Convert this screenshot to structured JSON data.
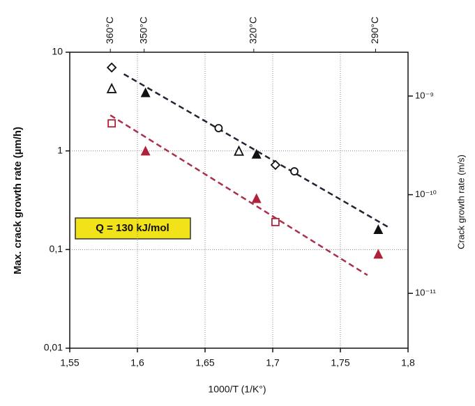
{
  "chart_data": {
    "type": "scatter",
    "y_label": "Max. crack growth rate (µm/h)",
    "y2_label": "Crack growth rate (m/s)",
    "x_label": "1000/T (1/K°)",
    "annotation": "Q = 130 kJ/mol",
    "log_y": true,
    "grid": true,
    "xlim": [
      1.55,
      1.8
    ],
    "xticks": [
      {
        "value": 1.55,
        "label": "1,55"
      },
      {
        "value": 1.6,
        "label": "1,6"
      },
      {
        "value": 1.65,
        "label": "1,65"
      },
      {
        "value": 1.7,
        "label": "1,7"
      },
      {
        "value": 1.75,
        "label": "1,75"
      },
      {
        "value": 1.8,
        "label": "1,8"
      }
    ],
    "ylim": [
      0.01,
      10
    ],
    "yticks": [
      {
        "value": 0.01,
        "label": "0,01"
      },
      {
        "value": 0.1,
        "label": "0,1"
      },
      1,
      10
    ],
    "y2lim": [
      2.78e-12,
      2.78e-09
    ],
    "y2ticks": [
      {
        "value": 1e-11,
        "label": "10⁻¹¹"
      },
      {
        "value": 1e-10,
        "label": "10⁻¹⁰"
      },
      {
        "value": 1e-09,
        "label": "10⁻⁹"
      }
    ],
    "top_ticks": [
      {
        "value": 1.58,
        "label": "360°C"
      },
      {
        "value": 1.605,
        "label": "350°C"
      },
      {
        "value": 1.686,
        "label": "320°C"
      },
      {
        "value": 1.776,
        "label": "290°C"
      }
    ],
    "series": [
      {
        "color": "#111111",
        "x": [
          1.581,
          1.581,
          1.606,
          1.66,
          1.675,
          1.688,
          1.702,
          1.716,
          1.778
        ],
        "values": [
          7,
          4.3,
          3.9,
          1.7,
          1.0,
          0.93,
          0.72,
          0.62,
          0.16
        ],
        "markers": [
          "diamond",
          "triangle",
          "triangle-filled",
          "circle",
          "triangle",
          "triangle-filled",
          "diamond",
          "circle",
          "triangle-filled"
        ]
      },
      {
        "color": "#b0203a",
        "x": [
          1.581,
          1.606,
          1.688,
          1.702,
          1.778
        ],
        "values": [
          1.9,
          1.0,
          0.33,
          0.19,
          0.09
        ],
        "markers": [
          "square",
          "triangle-filled",
          "triangle-filled",
          "square",
          "triangle-filled"
        ]
      }
    ],
    "fits": [
      {
        "color": "#222233",
        "x": [
          1.59,
          1.785
        ],
        "values": [
          6.0,
          0.17
        ]
      },
      {
        "color": "#a8304a",
        "x": [
          1.58,
          1.77
        ],
        "values": [
          2.3,
          0.055
        ]
      }
    ]
  }
}
